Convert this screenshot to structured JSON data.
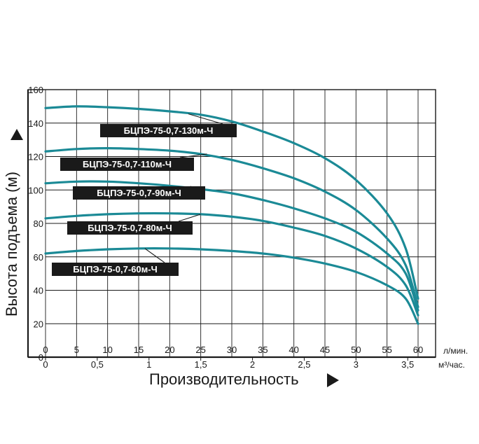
{
  "chart_data": {
    "type": "line",
    "ylabel": "Высота подъема (м)",
    "xlabel": "Производительность",
    "x_unit": "л/мин.",
    "x2_unit": "м³/час.",
    "xlim": [
      0,
      60
    ],
    "ylim": [
      0,
      160
    ],
    "x_ticks": [
      "0",
      "5",
      "10",
      "15",
      "20",
      "25",
      "30",
      "35",
      "40",
      "45",
      "50",
      "55",
      "60"
    ],
    "x2_ticks": [
      "0",
      "0,5",
      "1",
      "1,5",
      "2",
      "2,5",
      "3",
      "3,5"
    ],
    "x2_tick_values_lpm": [
      0,
      8.333,
      16.667,
      25,
      33.333,
      41.667,
      50,
      58.333
    ],
    "y_ticks": [
      "0",
      "20",
      "40",
      "60",
      "80",
      "100",
      "120",
      "140",
      "160"
    ],
    "grid": true,
    "colors": {
      "curve": "#1b8a96",
      "label_bg": "#1a1a1a",
      "grid": "#1a1a1a"
    },
    "series": [
      {
        "name": "БЦПЭ-75-0,7-130м-Ч",
        "x": [
          0,
          5,
          10,
          15,
          20,
          25,
          30,
          35,
          40,
          45,
          50,
          55,
          58,
          60
        ],
        "y": [
          149,
          150,
          149.5,
          148.5,
          147,
          145,
          141,
          135,
          128,
          119,
          106,
          86,
          65,
          35
        ]
      },
      {
        "name": "БЦПЭ-75-0,7-110м-Ч",
        "x": [
          0,
          5,
          10,
          15,
          20,
          25,
          30,
          35,
          40,
          45,
          50,
          55,
          58,
          60
        ],
        "y": [
          123,
          124.5,
          125,
          124.5,
          123.5,
          121.5,
          118,
          113,
          107,
          99,
          88,
          71,
          55,
          30
        ]
      },
      {
        "name": "БЦПЭ-75-0,7-90м-Ч",
        "x": [
          0,
          5,
          10,
          15,
          20,
          25,
          30,
          35,
          40,
          45,
          50,
          55,
          58,
          60
        ],
        "y": [
          104,
          105,
          105,
          104,
          102.5,
          100.5,
          98,
          94,
          89,
          83,
          75,
          62,
          50,
          28
        ]
      },
      {
        "name": "БЦПЭ-75-0,7-80м-Ч",
        "x": [
          0,
          5,
          10,
          15,
          20,
          25,
          30,
          35,
          40,
          45,
          50,
          55,
          58,
          60
        ],
        "y": [
          83,
          84.5,
          85.5,
          86,
          86,
          85.5,
          84,
          81.5,
          77.5,
          72.5,
          65,
          54,
          43,
          25
        ]
      },
      {
        "name": "БЦПЭ-75-0,7-60м-Ч",
        "x": [
          0,
          5,
          10,
          15,
          20,
          25,
          30,
          35,
          40,
          45,
          50,
          55,
          58,
          60
        ],
        "y": [
          62,
          63.5,
          64.5,
          65,
          65,
          64.5,
          63.5,
          62,
          59.5,
          56,
          51,
          43,
          35,
          20
        ]
      }
    ]
  }
}
